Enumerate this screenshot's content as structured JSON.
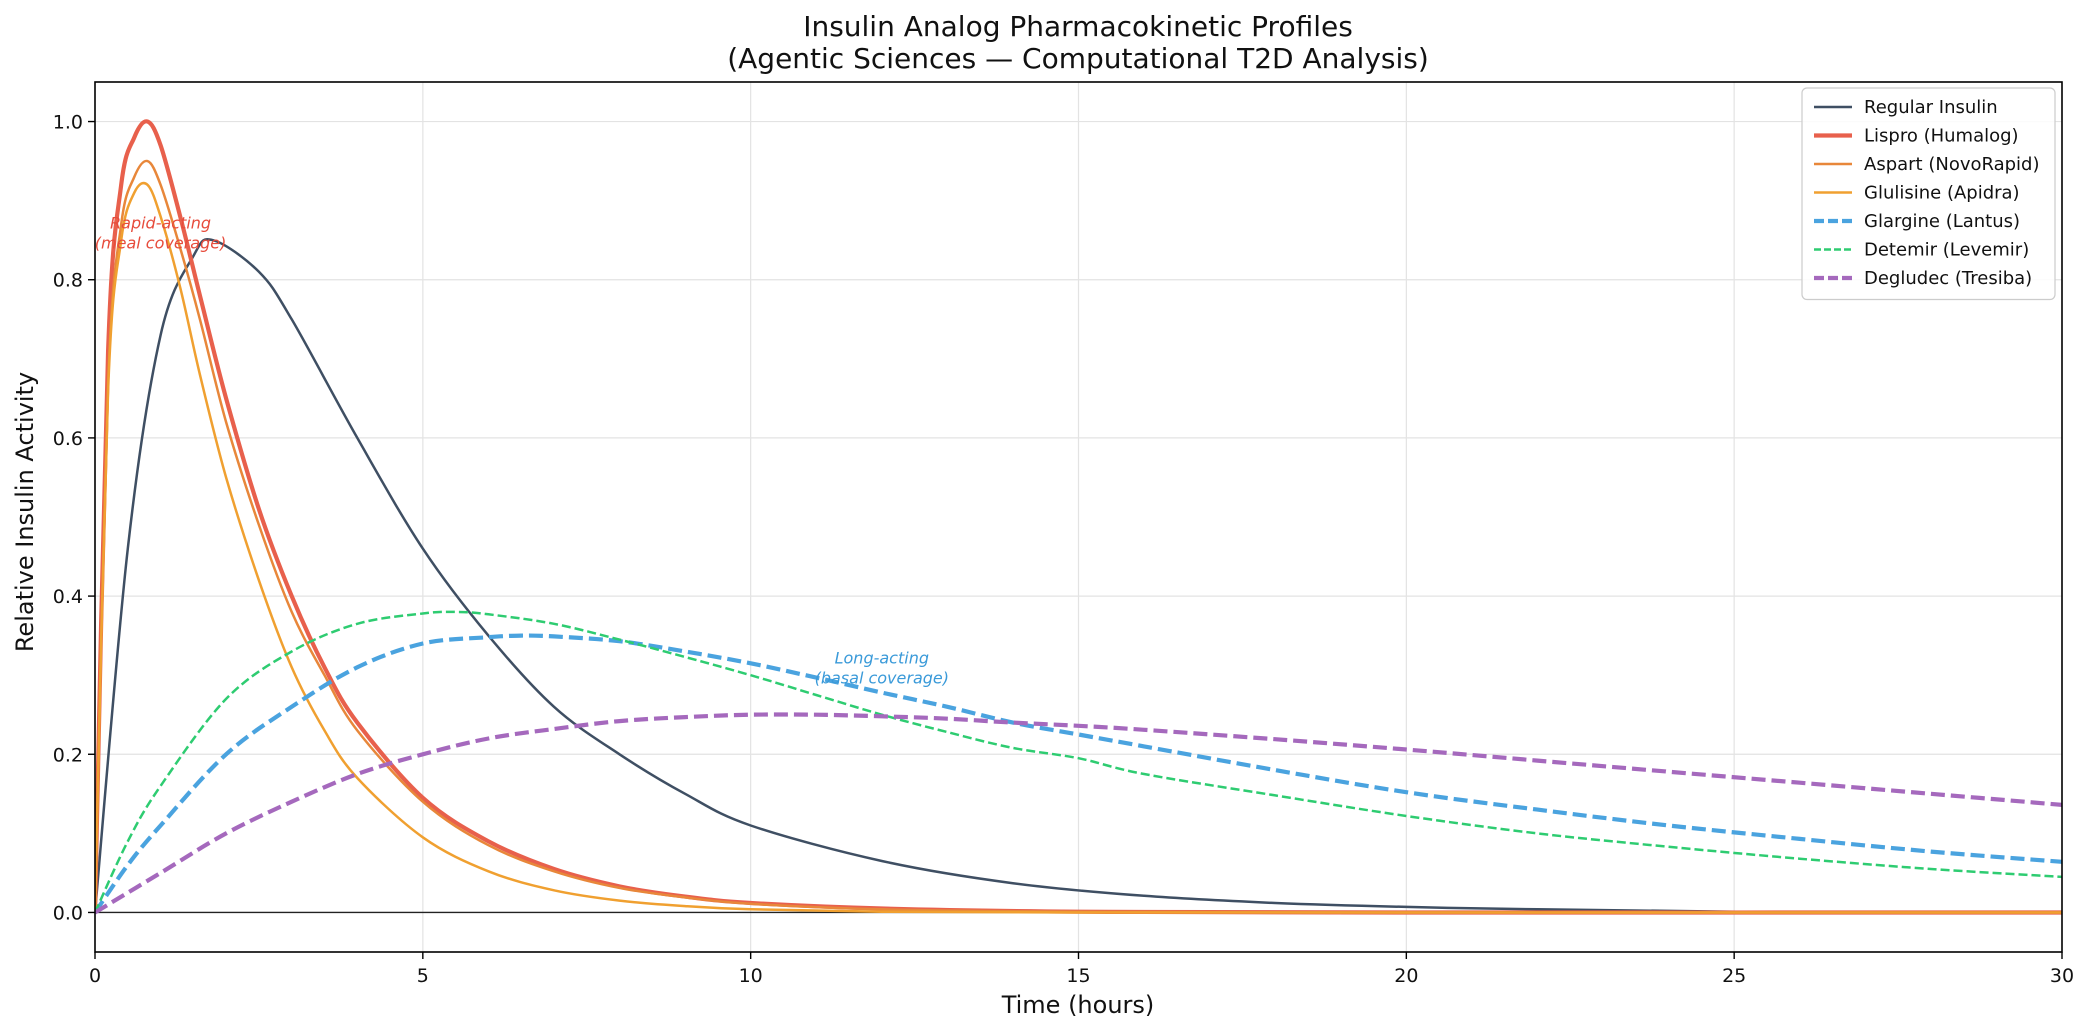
{
  "chart_data": {
    "type": "line",
    "title": "Insulin Analog Pharmacokinetic Profiles",
    "subtitle": "(Agentic Sciences — Computational T2D Analysis)",
    "xlabel": "Time (hours)",
    "ylabel": "Relative Insulin Activity",
    "xlim": [
      0,
      30
    ],
    "ylim": [
      -0.05,
      1.05
    ],
    "xticks": [
      0,
      5,
      10,
      15,
      20,
      25,
      30
    ],
    "yticks": [
      0.0,
      0.2,
      0.4,
      0.6,
      0.8,
      1.0
    ],
    "xtick_labels": [
      "0",
      "5",
      "10",
      "15",
      "20",
      "25",
      "30"
    ],
    "ytick_labels": [
      "0.0",
      "0.2",
      "0.4",
      "0.6",
      "0.8",
      "1.0"
    ],
    "grid": true,
    "legend_position": "top-right",
    "series": [
      {
        "name": "Regular Insulin",
        "color": "#3f4f63",
        "style": "solid",
        "weight": "normal",
        "x": [
          0,
          0.5,
          1,
          1.5,
          1.8,
          2.5,
          3,
          4,
          5,
          6,
          7,
          8,
          9,
          10,
          12,
          14,
          16,
          18,
          20,
          22,
          25,
          30
        ],
        "y": [
          0,
          0.46,
          0.73,
          0.83,
          0.85,
          0.81,
          0.75,
          0.6,
          0.46,
          0.35,
          0.26,
          0.2,
          0.15,
          0.11,
          0.065,
          0.037,
          0.021,
          0.012,
          0.007,
          0.004,
          0.001,
          0.0
        ]
      },
      {
        "name": "Lispro (Humalog)",
        "color": "#e8604c",
        "style": "solid",
        "weight": "thick",
        "x": [
          0,
          0.2,
          0.4,
          0.6,
          0.8,
          1.0,
          1.3,
          1.6,
          2,
          2.5,
          3,
          3.5,
          4,
          5,
          6,
          7,
          8,
          9,
          10,
          12,
          15,
          20,
          30
        ],
        "y": [
          0,
          0.71,
          0.92,
          0.98,
          1.0,
          0.97,
          0.88,
          0.78,
          0.65,
          0.51,
          0.4,
          0.31,
          0.24,
          0.145,
          0.09,
          0.055,
          0.033,
          0.02,
          0.012,
          0.005,
          0.001,
          0.0,
          0.0
        ]
      },
      {
        "name": "Aspart (NovoRapid)",
        "color": "#e8873a",
        "style": "solid",
        "weight": "normal",
        "x": [
          0,
          0.2,
          0.4,
          0.6,
          0.8,
          1.0,
          1.3,
          1.6,
          2,
          2.5,
          3,
          3.5,
          4,
          5,
          6,
          7,
          8,
          9,
          10,
          12,
          15,
          20,
          30
        ],
        "y": [
          0,
          0.67,
          0.87,
          0.93,
          0.95,
          0.92,
          0.84,
          0.75,
          0.62,
          0.49,
          0.38,
          0.3,
          0.23,
          0.14,
          0.085,
          0.052,
          0.031,
          0.019,
          0.011,
          0.004,
          0.001,
          0.0,
          0.0
        ]
      },
      {
        "name": "Glulisine (Apidra)",
        "color": "#f0a030",
        "style": "solid",
        "weight": "normal",
        "x": [
          0,
          0.2,
          0.4,
          0.6,
          0.8,
          1.0,
          1.3,
          1.6,
          2,
          2.5,
          3,
          3.5,
          4,
          5,
          6,
          7,
          8,
          9,
          10,
          12,
          15,
          20,
          30
        ],
        "y": [
          0,
          0.66,
          0.85,
          0.91,
          0.92,
          0.88,
          0.79,
          0.68,
          0.55,
          0.42,
          0.31,
          0.23,
          0.17,
          0.095,
          0.052,
          0.028,
          0.015,
          0.008,
          0.004,
          0.001,
          0.0,
          0.0,
          0.0
        ]
      },
      {
        "name": "Glargine (Lantus)",
        "color": "#4aa3df",
        "style": "dashed",
        "weight": "thick",
        "x": [
          0,
          0.5,
          1,
          2,
          3,
          4,
          5,
          6,
          6.5,
          7,
          8,
          9,
          10,
          11,
          12,
          13,
          14,
          15,
          16,
          18,
          20,
          22,
          24,
          26,
          28,
          30
        ],
        "y": [
          0,
          0.06,
          0.11,
          0.2,
          0.26,
          0.31,
          0.34,
          0.348,
          0.35,
          0.349,
          0.343,
          0.33,
          0.315,
          0.297,
          0.278,
          0.26,
          0.24,
          0.225,
          0.21,
          0.18,
          0.152,
          0.13,
          0.11,
          0.093,
          0.077,
          0.064
        ]
      },
      {
        "name": "Detemir (Levemir)",
        "color": "#2ecc71",
        "style": "dashed",
        "weight": "normal",
        "x": [
          0,
          0.5,
          1,
          2,
          3,
          4,
          5,
          5.5,
          6,
          7,
          8,
          9,
          10,
          11,
          12,
          13,
          14,
          15,
          16,
          18,
          20,
          22,
          24,
          26,
          28,
          30
        ],
        "y": [
          0,
          0.09,
          0.16,
          0.27,
          0.33,
          0.365,
          0.378,
          0.38,
          0.377,
          0.365,
          0.345,
          0.323,
          0.3,
          0.275,
          0.25,
          0.228,
          0.208,
          0.195,
          0.175,
          0.148,
          0.122,
          0.1,
          0.083,
          0.068,
          0.055,
          0.045
        ]
      },
      {
        "name": "Degludec (Tresiba)",
        "color": "#a569bd",
        "style": "dashed",
        "weight": "thick",
        "x": [
          0,
          1,
          2,
          3,
          4,
          5,
          6,
          7,
          8,
          9,
          10,
          11,
          12,
          13,
          14,
          15,
          16,
          18,
          20,
          22,
          24,
          26,
          28,
          30
        ],
        "y": [
          0,
          0.05,
          0.1,
          0.14,
          0.175,
          0.2,
          0.22,
          0.232,
          0.242,
          0.247,
          0.25,
          0.25,
          0.248,
          0.245,
          0.24,
          0.236,
          0.231,
          0.219,
          0.206,
          0.192,
          0.178,
          0.164,
          0.15,
          0.136
        ]
      }
    ],
    "annotations": [
      {
        "lines": [
          "Rapid-acting",
          "(meal coverage)"
        ],
        "x": 1.0,
        "y": 0.865,
        "color": "#e74c3c"
      },
      {
        "lines": [
          "Long-acting",
          "(basal coverage)"
        ],
        "x": 12.0,
        "y": 0.315,
        "color": "#3a9ad9"
      }
    ]
  }
}
